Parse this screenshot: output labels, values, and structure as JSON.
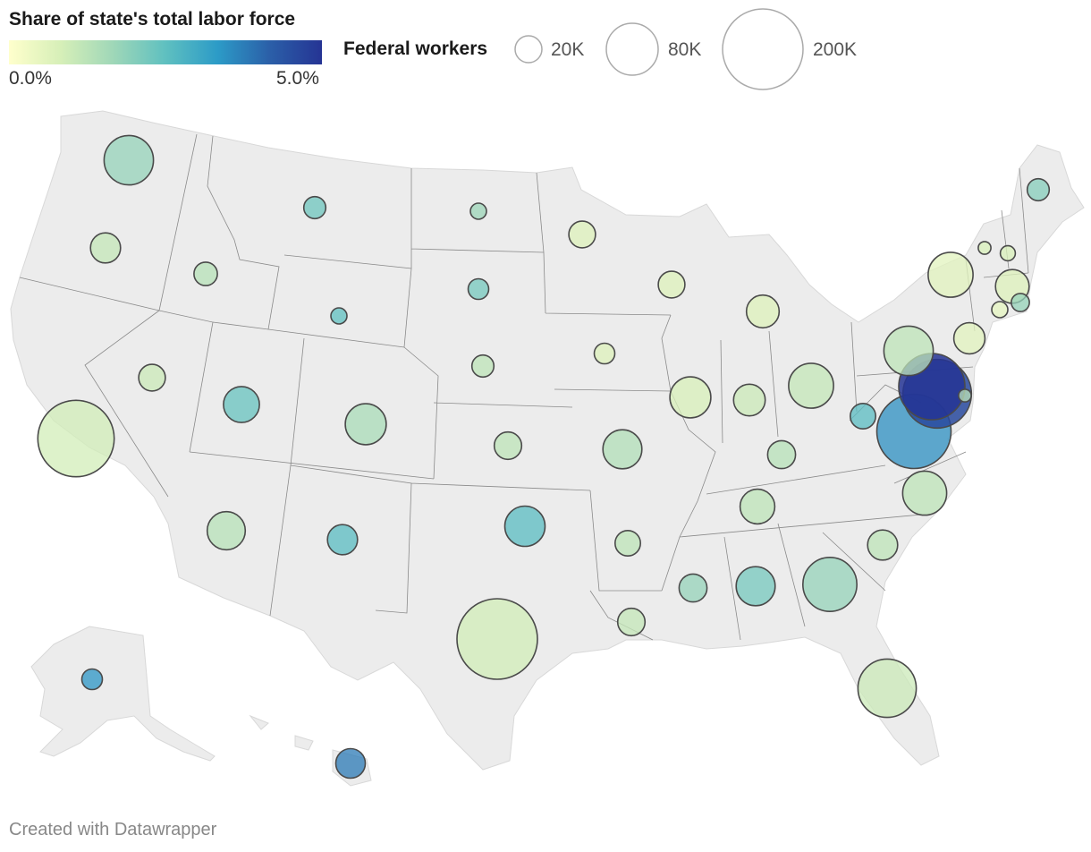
{
  "legend": {
    "color_title": "Share of state's total labor force",
    "color_min_label": "0.0%",
    "color_max_label": "5.0%",
    "color_stops": [
      "#ffffcc",
      "#d6efb8",
      "#9fd7b8",
      "#5fc0c0",
      "#2c9bc7",
      "#2b5fa8",
      "#253494"
    ],
    "size_title": "Federal workers",
    "size_items": [
      {
        "label": "20K",
        "value": 20000
      },
      {
        "label": "80K",
        "value": 80000
      },
      {
        "label": "200K",
        "value": 200000
      }
    ]
  },
  "footer": "Created with Datawrapper",
  "map_colors": {
    "land": "#ececec",
    "border": "#8a8a8a",
    "bubble_stroke": "#4a4a4a"
  },
  "chart_data": {
    "type": "bubble-map",
    "title": "Share of state's total labor force",
    "size_variable": "Federal workers",
    "color_variable": "Share of state's total labor force",
    "color_range": [
      0.0,
      5.0
    ],
    "states": [
      {
        "state": "WA",
        "workers": 75000,
        "share": 1.8
      },
      {
        "state": "OR",
        "workers": 28000,
        "share": 1.1
      },
      {
        "state": "CA",
        "workers": 180000,
        "share": 0.9
      },
      {
        "state": "ID",
        "workers": 17000,
        "share": 1.3
      },
      {
        "state": "NV",
        "workers": 22000,
        "share": 1.0
      },
      {
        "state": "MT",
        "workers": 15000,
        "share": 2.3
      },
      {
        "state": "WY",
        "workers": 8000,
        "share": 2.5
      },
      {
        "state": "UT",
        "workers": 40000,
        "share": 2.4
      },
      {
        "state": "CO",
        "workers": 52000,
        "share": 1.5
      },
      {
        "state": "AZ",
        "workers": 45000,
        "share": 1.3
      },
      {
        "state": "NM",
        "workers": 28000,
        "share": 2.6
      },
      {
        "state": "ND",
        "workers": 8000,
        "share": 1.7
      },
      {
        "state": "SD",
        "workers": 13000,
        "share": 2.2
      },
      {
        "state": "NE",
        "workers": 15000,
        "share": 1.2
      },
      {
        "state": "KS",
        "workers": 23000,
        "share": 1.2
      },
      {
        "state": "OK",
        "workers": 50000,
        "share": 2.6
      },
      {
        "state": "TX",
        "workers": 200000,
        "share": 0.9
      },
      {
        "state": "MN",
        "workers": 22000,
        "share": 0.7
      },
      {
        "state": "IA",
        "workers": 13000,
        "share": 0.7
      },
      {
        "state": "MO",
        "workers": 47000,
        "share": 1.4
      },
      {
        "state": "AR",
        "workers": 20000,
        "share": 1.2
      },
      {
        "state": "LA",
        "workers": 23000,
        "share": 1.1
      },
      {
        "state": "WI",
        "workers": 22000,
        "share": 0.7
      },
      {
        "state": "IL",
        "workers": 52000,
        "share": 0.8
      },
      {
        "state": "IN",
        "workers": 31000,
        "share": 1.0
      },
      {
        "state": "MI",
        "workers": 33000,
        "share": 0.7
      },
      {
        "state": "OH",
        "workers": 62000,
        "share": 1.1
      },
      {
        "state": "KY",
        "workers": 24000,
        "share": 1.3
      },
      {
        "state": "TN",
        "workers": 37000,
        "share": 1.2
      },
      {
        "state": "MS",
        "workers": 24000,
        "share": 1.8
      },
      {
        "state": "AL",
        "workers": 47000,
        "share": 2.2
      },
      {
        "state": "GA",
        "workers": 90000,
        "share": 1.8
      },
      {
        "state": "FL",
        "workers": 105000,
        "share": 1.0
      },
      {
        "state": "SC",
        "workers": 28000,
        "share": 1.2
      },
      {
        "state": "NC",
        "workers": 60000,
        "share": 1.2
      },
      {
        "state": "VA",
        "workers": 170000,
        "share": 3.5
      },
      {
        "state": "WV",
        "workers": 20000,
        "share": 2.6
      },
      {
        "state": "MD",
        "workers": 145000,
        "share": 4.6
      },
      {
        "state": "DC",
        "workers": 135000,
        "share": 5.0
      },
      {
        "state": "DE",
        "workers": 5000,
        "share": 1.2
      },
      {
        "state": "PA",
        "workers": 75000,
        "share": 1.2
      },
      {
        "state": "NJ",
        "workers": 30000,
        "share": 0.6
      },
      {
        "state": "NY",
        "workers": 62000,
        "share": 0.6
      },
      {
        "state": "CT",
        "workers": 8000,
        "share": 0.5
      },
      {
        "state": "RI",
        "workers": 10000,
        "share": 1.8
      },
      {
        "state": "MA",
        "workers": 35000,
        "share": 0.7
      },
      {
        "state": "VT",
        "workers": 5000,
        "share": 0.8
      },
      {
        "state": "NH",
        "workers": 7000,
        "share": 0.8
      },
      {
        "state": "ME",
        "workers": 15000,
        "share": 2.0
      },
      {
        "state": "AK",
        "workers": 13000,
        "share": 3.4
      },
      {
        "state": "HI",
        "workers": 27000,
        "share": 3.8
      }
    ]
  }
}
